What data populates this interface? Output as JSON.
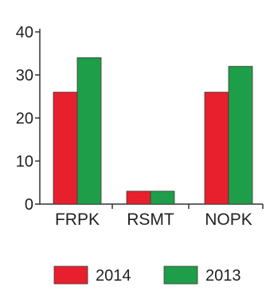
{
  "chart_data": {
    "type": "bar",
    "title": "",
    "xlabel": "",
    "ylabel": "",
    "categories": [
      "FRPK",
      "RSMT",
      "NOPK"
    ],
    "series": [
      {
        "name": "2014",
        "values": [
          26,
          3,
          26
        ],
        "color": "#e8202e"
      },
      {
        "name": "2013",
        "values": [
          34,
          3,
          32
        ],
        "color": "#1f9e4a"
      }
    ],
    "ylim": [
      0,
      40
    ],
    "yticks": [
      "0",
      "10",
      "20",
      "30",
      "40"
    ],
    "grid": false,
    "legend_position": "bottom"
  }
}
